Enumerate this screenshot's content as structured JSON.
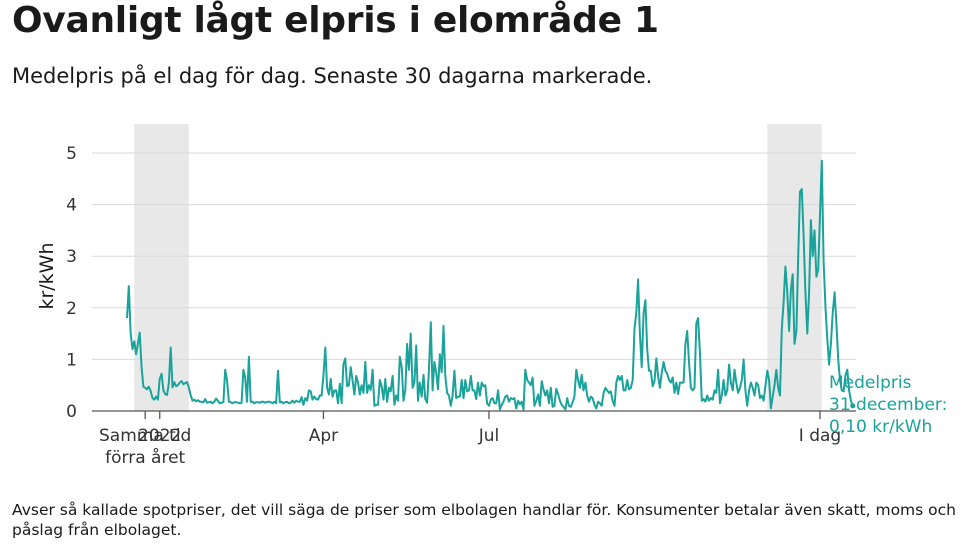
{
  "title": "Ovanligt lågt elpris i elområde 1",
  "subtitle": "Medelpris på el dag för dag.  Senaste 30 dagarna markerade.",
  "footnote": "Avser så kallade spotpriser, det vill säga de priser som elbolagen handlar för. Konsumenter betalar även skatt, moms och påslag från elbolaget.",
  "chart_data": {
    "type": "line",
    "ylabel": "kr/kWh",
    "ylim": [
      0,
      5
    ],
    "yticks": [
      0,
      1,
      2,
      3,
      4,
      5
    ],
    "grid": "horizontal",
    "line_color": "#1aa39a",
    "highlight_color": "#e8e8e8",
    "xticks": [
      {
        "day": 9,
        "label": "Samma tid\nförra året"
      },
      {
        "day": 17,
        "label": "2022"
      },
      {
        "day": 107,
        "label": "Apr"
      },
      {
        "day": 198,
        "label": "Jul"
      },
      {
        "day": 380,
        "label": "I dag"
      }
    ],
    "highlight_ranges": [
      [
        3,
        33
      ],
      [
        351,
        381
      ]
    ],
    "annotation": {
      "lines": [
        "Medelpris",
        "31 december:",
        "0,10 kr/kWh"
      ]
    },
    "series": [
      {
        "x_start": -1,
        "values": [
          1.8,
          2.42,
          1.52,
          1.2,
          1.35,
          1.1,
          1.3,
          1.52,
          0.84,
          0.47,
          0.45,
          0.42,
          0.47,
          0.39,
          0.25,
          0.22,
          0.28,
          0.22,
          0.62,
          0.72,
          0.4,
          0.33,
          0.31,
          0.53,
          1.23,
          0.46,
          0.56,
          0.48,
          0.5,
          0.55,
          0.58,
          0.52,
          0.54,
          0.56,
          0.46,
          0.3,
          0.2,
          0.22,
          0.19,
          0.21,
          0.18,
          0.18,
          0.17,
          0.23,
          0.16,
          0.17,
          0.18,
          0.15,
          0.18,
          0.24,
          0.2,
          0.15,
          0.16,
          0.17,
          0.8,
          0.6,
          0.18,
          0.17,
          0.15,
          0.17,
          0.17,
          0.16,
          0.15,
          0.16,
          0.8,
          0.65,
          0.18,
          1.05,
          0.18,
          0.18,
          0.15,
          0.17,
          0.17,
          0.16,
          0.18,
          0.18,
          0.16,
          0.18,
          0.18,
          0.17,
          0.15,
          0.18,
          0.15,
          0.78,
          0.17,
          0.18,
          0.15,
          0.17,
          0.18,
          0.15,
          0.16,
          0.2,
          0.16,
          0.2,
          0.18,
          0.18,
          0.27,
          0.12,
          0.25,
          0.2,
          0.4,
          0.38,
          0.22,
          0.28,
          0.23,
          0.22,
          0.3,
          0.3,
          0.68,
          1.23,
          0.45,
          0.32,
          0.62,
          0.28,
          0.4,
          0.4,
          0.15,
          0.53,
          0.15,
          0.9,
          1.02,
          0.48,
          0.5,
          0.85,
          0.6,
          0.32,
          0.68,
          0.55,
          0.32,
          0.5,
          0.35,
          0.95,
          0.35,
          0.5,
          0.41,
          0.8,
          0.1,
          0.12,
          0.12,
          0.6,
          0.48,
          0.22,
          0.62,
          0.18,
          0.45,
          0.38,
          0.68,
          0.12,
          0.3,
          0.2,
          1.05,
          0.85,
          0.2,
          0.4,
          1.3,
          0.8,
          1.5,
          0.45,
          0.55,
          1.27,
          0.2,
          0.55,
          0.28,
          0.7,
          0.23,
          0.16,
          0.78,
          1.72,
          0.4,
          0.95,
          0.75,
          0.42,
          1.1,
          0.75,
          1.65,
          0.68,
          0.35,
          0.3,
          0.1,
          0.3,
          0.78,
          0.25,
          0.28,
          0.28,
          0.6,
          0.25,
          0.6,
          0.38,
          0.4,
          0.68,
          0.4,
          0.4,
          0.23,
          0.55,
          0.3,
          0.55,
          0.48,
          0.5,
          0.15,
          0.1,
          0.22,
          0.25,
          0.15,
          0.15,
          0.4,
          0.03,
          0.12,
          0.18,
          0.28,
          0.3,
          0.18,
          0.25,
          0.23,
          0.25,
          0.05,
          0.2,
          0.13,
          0.18,
          0.03,
          0.8,
          0.6,
          0.55,
          0.5,
          0.65,
          0.1,
          0.2,
          0.32,
          0.1,
          0.58,
          0.42,
          0.3,
          0.4,
          0.15,
          0.45,
          0.08,
          0.1,
          0.43,
          0.33,
          0.2,
          0.12,
          0.08,
          0.03,
          0.25,
          0.1,
          0.08,
          0.17,
          0.28,
          0.8,
          0.6,
          0.45,
          0.7,
          0.4,
          0.55,
          0.3,
          0.18,
          0.28,
          0.25,
          0.12,
          0.05,
          0.18,
          0.15,
          0.1,
          0.35,
          0.45,
          0.4,
          0.35,
          0.38,
          0.2,
          0.1,
          0.55,
          0.68,
          0.6,
          0.68,
          0.4,
          0.4,
          0.6,
          0.42,
          0.45,
          0.6,
          1.6,
          1.9,
          2.55,
          1.5,
          0.85,
          1.9,
          2.15,
          1.2,
          0.78,
          0.78,
          0.48,
          0.58,
          1.02,
          0.68,
          0.45,
          0.75,
          0.95,
          0.78,
          0.72,
          0.6,
          0.55,
          0.65,
          0.35,
          0.55,
          0.33,
          0.55,
          0.55,
          0.55,
          1.3,
          1.55,
          0.95,
          0.45,
          0.4,
          0.45,
          1.7,
          1.8,
          1.1,
          0.2,
          0.23,
          0.18,
          0.3,
          0.2,
          0.25,
          0.22,
          0.4,
          0.35,
          0.8,
          0.15,
          0.3,
          0.6,
          0.3,
          0.4,
          0.9,
          0.55,
          0.4,
          0.8,
          0.55,
          0.35,
          0.45,
          0.6,
          1.0,
          0.4,
          0.1,
          0.4,
          0.55,
          0.45,
          0.3,
          0.55,
          0.5,
          0.25,
          0.3,
          0.2,
          0.48,
          0.78,
          0.6,
          0.05,
          0.28,
          0.5,
          0.8,
          0.45,
          0.3,
          1.6,
          2.1,
          2.8,
          2.3,
          1.55,
          2.35,
          2.65,
          1.3,
          1.55,
          3.0,
          4.25,
          4.3,
          3.4,
          2.3,
          1.5,
          2.3,
          3.7,
          3.0,
          3.5,
          2.6,
          2.75,
          3.8,
          4.85,
          2.9,
          2.0,
          1.4,
          0.9,
          1.3,
          1.9,
          2.3,
          1.7,
          1.0,
          0.6,
          0.4,
          0.38,
          0.7,
          0.8,
          0.4,
          0.2,
          0.1
        ]
      }
    ]
  }
}
